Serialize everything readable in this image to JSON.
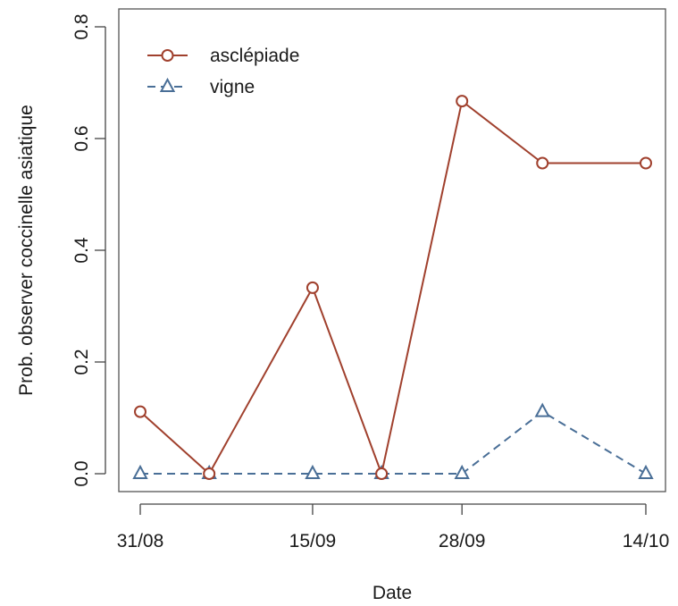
{
  "chart_data": {
    "type": "line",
    "title": "",
    "xlabel": "Date",
    "ylabel": "Prob. observer coccinelle asiatique",
    "x_dates": [
      "2019-08-31",
      "2019-09-06",
      "2019-09-15",
      "2019-09-21",
      "2019-09-28",
      "2019-10-05",
      "2019-10-14"
    ],
    "xticks": [
      {
        "date": "2019-08-31",
        "label": "31/08"
      },
      {
        "date": "2019-09-15",
        "label": "15/09"
      },
      {
        "date": "2019-09-28",
        "label": "28/09"
      },
      {
        "date": "2019-10-14",
        "label": "14/10"
      }
    ],
    "ylim": [
      0,
      0.8
    ],
    "yticks": [
      {
        "value": 0.0,
        "label": "0.0"
      },
      {
        "value": 0.2,
        "label": "0.2"
      },
      {
        "value": 0.4,
        "label": "0.4"
      },
      {
        "value": 0.6,
        "label": "0.6"
      },
      {
        "value": 0.8,
        "label": "0.8"
      }
    ],
    "grid": false,
    "legend_position": "top-left",
    "series": [
      {
        "name": "asclépiade",
        "values": [
          0.111,
          0.0,
          0.333,
          0.0,
          0.667,
          0.556,
          0.556
        ],
        "color": "#a0402d",
        "marker": "circle",
        "line_style": "solid"
      },
      {
        "name": "vigne",
        "values": [
          0.0,
          0.0,
          0.0,
          0.0,
          0.0,
          0.111,
          0.0
        ],
        "color": "#4a6f97",
        "marker": "triangle",
        "line_style": "dashed"
      }
    ]
  }
}
